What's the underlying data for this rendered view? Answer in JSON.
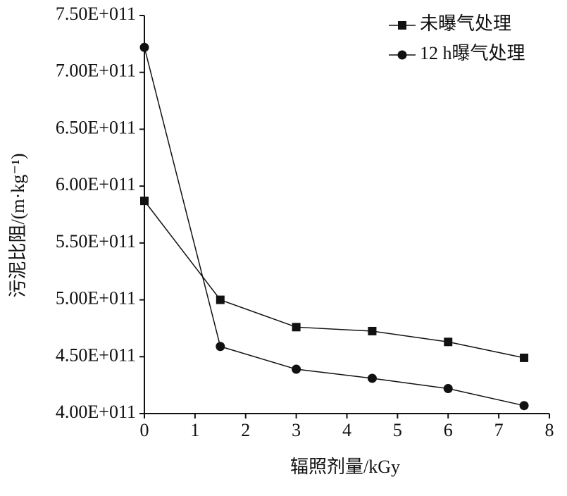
{
  "chart_data": {
    "type": "line",
    "x_label": "辐照剂量/kGy",
    "y_label": "污泥比阻/(m·kg⁻¹)",
    "x": [
      0,
      1.5,
      3,
      4.5,
      6,
      7.5
    ],
    "series": [
      {
        "name": "未曝气处理",
        "color": "#111111",
        "marker": "square",
        "values": [
          587000000000,
          500000000000,
          476000000000,
          472500000000,
          463000000000,
          449000000000
        ]
      },
      {
        "name": "12 h曝气处理",
        "color": "#111111",
        "marker": "circle",
        "values": [
          722000000000,
          459000000000,
          439000000000,
          431000000000,
          422000000000,
          407000000000
        ]
      }
    ],
    "xlim": [
      0,
      8
    ],
    "xticks": [
      0,
      1,
      2,
      3,
      4,
      5,
      6,
      7,
      8
    ],
    "ylim": [
      400000000000,
      750000000000
    ],
    "yticks": [
      {
        "value": 400000000000,
        "label": "4.00E+011"
      },
      {
        "value": 450000000000,
        "label": "4.50E+011"
      },
      {
        "value": 500000000000,
        "label": "5.00E+011"
      },
      {
        "value": 550000000000,
        "label": "5.50E+011"
      },
      {
        "value": 600000000000,
        "label": "6.00E+011"
      },
      {
        "value": 650000000000,
        "label": "6.50E+011"
      },
      {
        "value": 700000000000,
        "label": "7.00E+011"
      },
      {
        "value": 750000000000,
        "label": "7.50E+011"
      }
    ],
    "legend": "top-right"
  }
}
